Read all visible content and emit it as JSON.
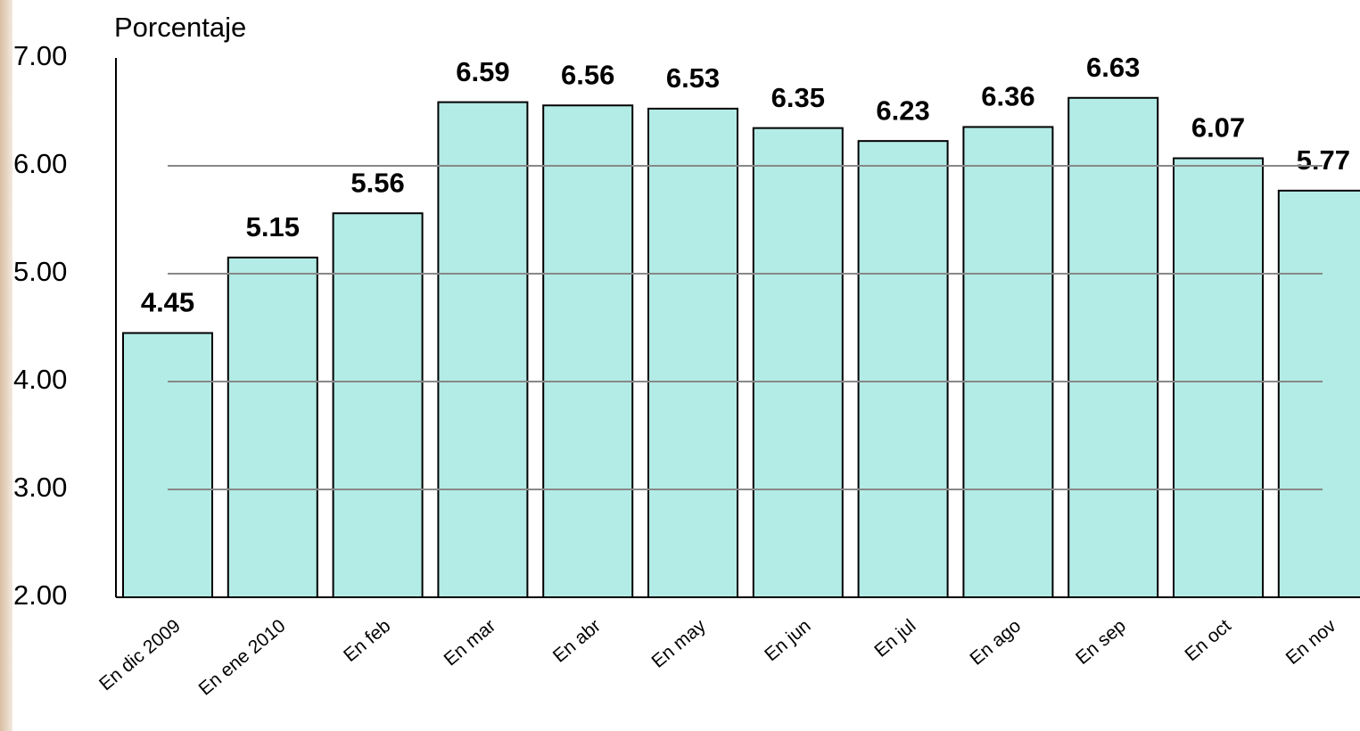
{
  "chart_data": {
    "type": "bar",
    "y_label": "Porcentaje",
    "categories": [
      "En dic 2009",
      "En ene 2010",
      "En feb",
      "En mar",
      "En abr",
      "En may",
      "En jun",
      "En jul",
      "En ago",
      "En sep",
      "En oct",
      "En nov"
    ],
    "values": [
      4.45,
      5.15,
      5.56,
      6.59,
      6.56,
      6.53,
      6.35,
      6.23,
      6.36,
      6.63,
      6.07,
      5.77
    ],
    "color": "#b3ebe6",
    "ylim": [
      2,
      7
    ],
    "yticks": [
      {
        "value": 2,
        "label": "2.00"
      },
      {
        "value": 3,
        "label": "3.00"
      },
      {
        "value": 4,
        "label": "4.00"
      },
      {
        "value": 5,
        "label": "5.00"
      },
      {
        "value": 6,
        "label": "6.00"
      },
      {
        "value": 7,
        "label": "7.00"
      }
    ],
    "grid": true
  }
}
